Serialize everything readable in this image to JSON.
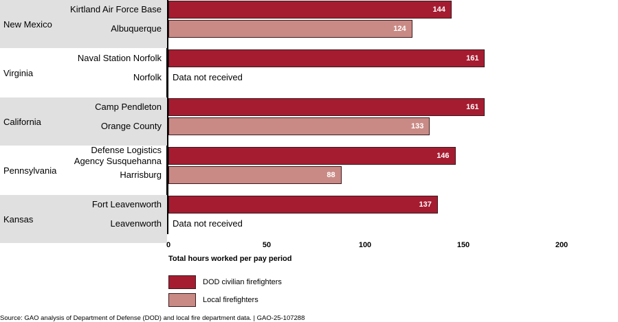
{
  "chart_data": {
    "type": "bar",
    "orientation": "horizontal",
    "title": "",
    "xlabel": "Total hours worked per pay period",
    "ylabel": "",
    "xlim": [
      0,
      200
    ],
    "xticks": [
      0,
      50,
      100,
      150,
      200
    ],
    "grid": false,
    "legend_position": "bottom-left",
    "series": [
      {
        "name": "DOD civilian firefighters",
        "color": "#a51c30"
      },
      {
        "name": "Local firefighters",
        "color": "#c98a85"
      }
    ],
    "groups": [
      {
        "state": "New Mexico",
        "shaded": true,
        "rows": [
          {
            "label": "Kirtland Air Force Base",
            "series": "DOD civilian firefighters",
            "value": 144
          },
          {
            "label": "Albuquerque",
            "series": "Local firefighters",
            "value": 124
          }
        ]
      },
      {
        "state": "Virginia",
        "shaded": false,
        "rows": [
          {
            "label": "Naval Station Norfolk",
            "series": "DOD civilian firefighters",
            "value": 161
          },
          {
            "label": "Norfolk",
            "series": "Local firefighters",
            "value": null,
            "note": "Data not received"
          }
        ]
      },
      {
        "state": "California",
        "shaded": true,
        "rows": [
          {
            "label": "Camp Pendleton",
            "series": "DOD civilian firefighters",
            "value": 161
          },
          {
            "label": "Orange County",
            "series": "Local firefighters",
            "value": 133
          }
        ]
      },
      {
        "state": "Pennsylvania",
        "shaded": false,
        "rows": [
          {
            "label": "Defense Logistics\nAgency Susquehanna",
            "series": "DOD civilian firefighters",
            "value": 146
          },
          {
            "label": "Harrisburg",
            "series": "Local firefighters",
            "value": 88
          }
        ]
      },
      {
        "state": "Kansas",
        "shaded": true,
        "rows": [
          {
            "label": "Fort Leavenworth",
            "series": "DOD civilian firefighters",
            "value": 137
          },
          {
            "label": "Leavenworth",
            "series": "Local firefighters",
            "value": null,
            "note": "Data not received"
          }
        ]
      }
    ]
  },
  "source": "Source: GAO analysis of Department of Defense (DOD) and local fire department data.  |  GAO-25-107288"
}
